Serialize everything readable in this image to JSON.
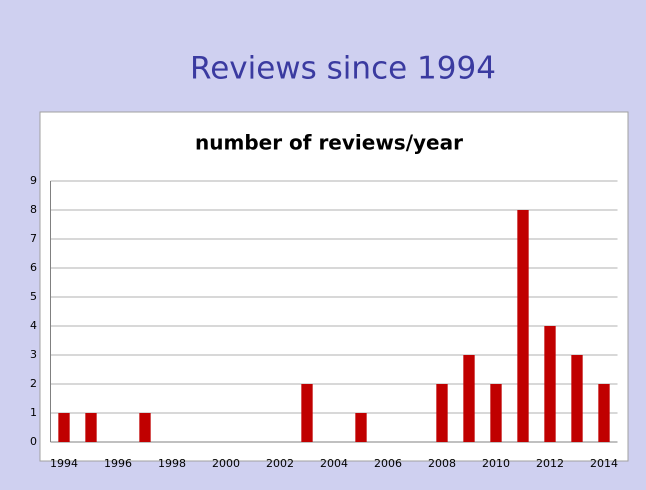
{
  "slide_title": "Reviews since 1994",
  "chart_data": {
    "type": "bar",
    "title": "number of reviews/year",
    "categories": [
      "1994",
      null,
      "1996",
      null,
      "1998",
      null,
      "2000",
      null,
      "2002",
      null,
      "2004",
      null,
      "2006",
      null,
      "2008",
      null,
      "2010",
      null,
      "2012",
      null,
      "2014"
    ],
    "values": [
      1,
      1,
      0,
      1,
      0,
      0,
      0,
      0,
      0,
      2,
      0,
      1,
      0,
      0,
      2,
      3,
      2,
      8,
      4,
      3,
      2
    ],
    "color": "#c00000",
    "ylim": [
      0,
      9
    ],
    "yticks": [
      0,
      1,
      2,
      3,
      4,
      5,
      6,
      7,
      8,
      9
    ],
    "grid": true
  }
}
